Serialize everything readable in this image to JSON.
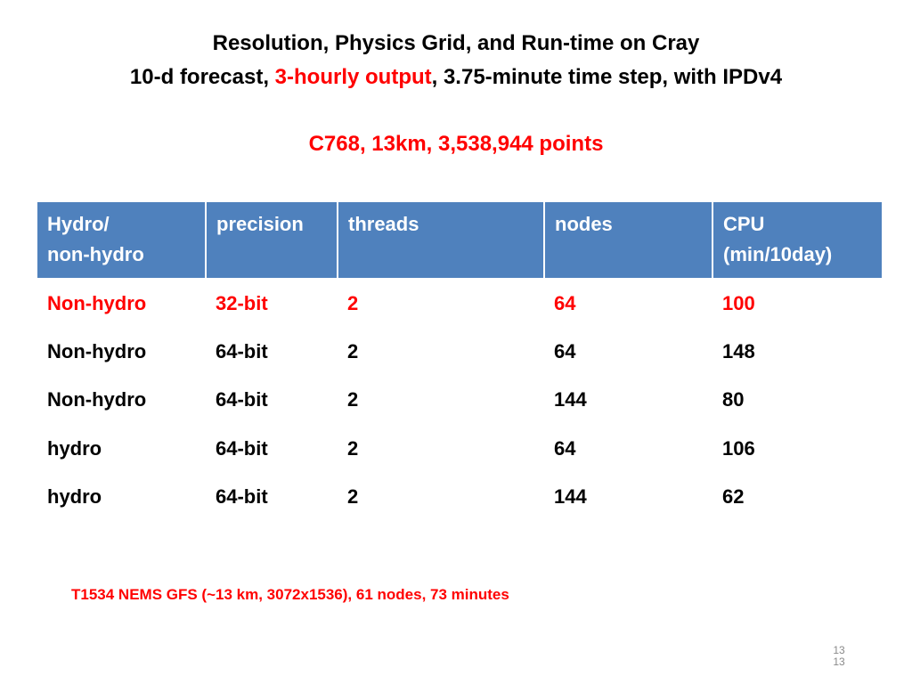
{
  "title": {
    "line1": "Resolution, Physics Grid, and Run-time on Cray",
    "line2_part1": "10-d forecast, ",
    "line2_highlight": "3-hourly output",
    "line2_part2": ",  3.75-minute time step, with IPDv4"
  },
  "subtitle": "C768, 13km, 3,538,944 points",
  "table": {
    "headers": [
      {
        "line1": "Hydro/",
        "line2": "non-hydro"
      },
      {
        "line1": "precision",
        "line2": ""
      },
      {
        "line1": "threads",
        "line2": ""
      },
      {
        "line1": "nodes",
        "line2": ""
      },
      {
        "line1": "CPU",
        "line2": "(min/10day)"
      }
    ],
    "rows": [
      {
        "cells": [
          "Non-hydro",
          "32-bit",
          "2",
          "64",
          "100"
        ],
        "highlight": true
      },
      {
        "cells": [
          "Non-hydro",
          "64-bit",
          "2",
          "64",
          "148"
        ],
        "highlight": false
      },
      {
        "cells": [
          "Non-hydro",
          "64-bit",
          "2",
          "144",
          "80"
        ],
        "highlight": false
      },
      {
        "cells": [
          "hydro",
          "64-bit",
          "2",
          "64",
          "106"
        ],
        "highlight": false
      },
      {
        "cells": [
          "hydro",
          "64-bit",
          "2",
          "144",
          "62"
        ],
        "highlight": false
      }
    ]
  },
  "footnote": "T1534 NEMS GFS (~13 km, 3072x1536),  61 nodes, 73 minutes",
  "page_number": {
    "line1": "13",
    "line2": "13"
  },
  "colors": {
    "accent": "#ff0000",
    "header_background": "#4f81bd",
    "header_text": "#ffffff",
    "page_number": "#8a8a8a"
  }
}
